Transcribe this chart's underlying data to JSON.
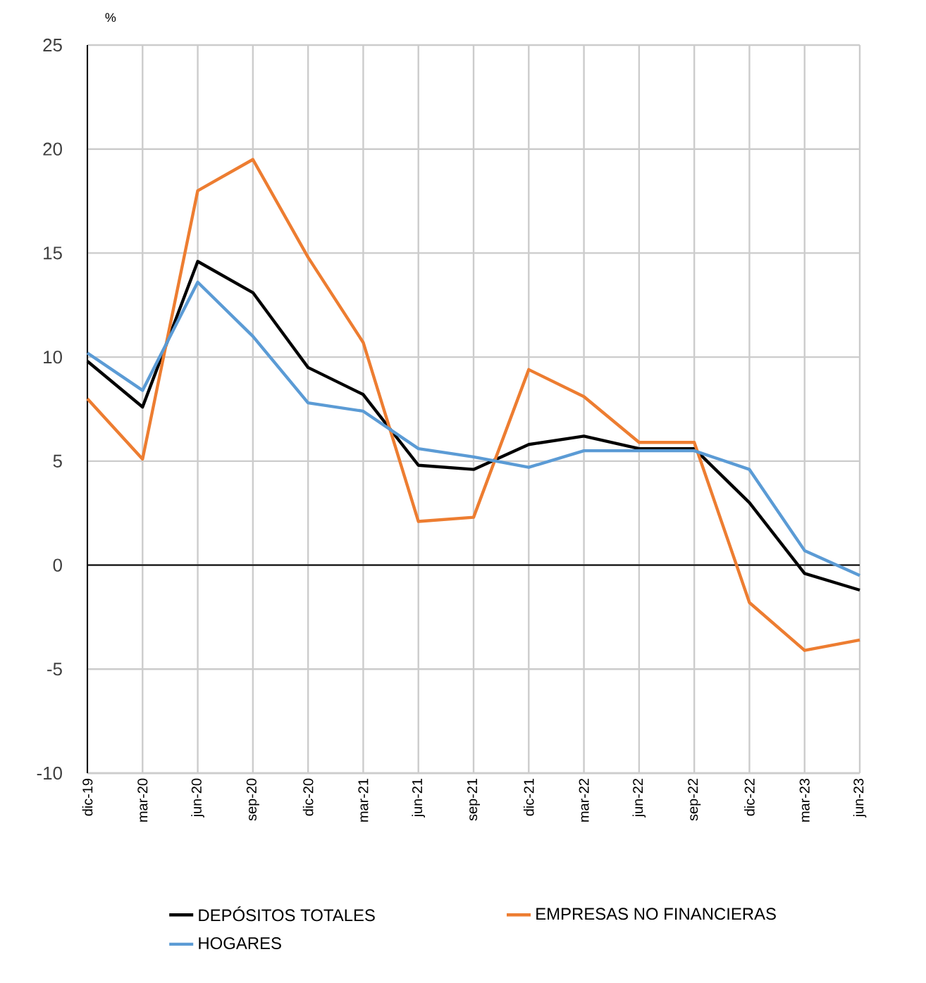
{
  "chart_data": {
    "type": "line",
    "ylabel": "%",
    "categories": [
      "dic-19",
      "mar-20",
      "jun-20",
      "sep-20",
      "dic-20",
      "mar-21",
      "jun-21",
      "sep-21",
      "dic-21",
      "mar-22",
      "jun-22",
      "sep-22",
      "dic-22",
      "mar-23",
      "jun-23"
    ],
    "series": [
      {
        "name": "DEPÓSITOS TOTALES",
        "color": "#000000",
        "values": [
          9.8,
          7.6,
          14.6,
          13.1,
          9.5,
          8.2,
          4.8,
          4.6,
          5.8,
          6.2,
          5.6,
          5.6,
          3.0,
          -0.4,
          -1.2
        ]
      },
      {
        "name": "EMPRESAS NO FINANCIERAS",
        "color": "#ed7d31",
        "values": [
          8.0,
          5.1,
          18.0,
          19.5,
          14.8,
          10.7,
          2.1,
          2.3,
          9.4,
          8.1,
          5.9,
          5.9,
          -1.8,
          -4.1,
          -3.6
        ]
      },
      {
        "name": "HOGARES",
        "color": "#5b9bd5",
        "values": [
          10.2,
          8.4,
          13.6,
          11.0,
          7.8,
          7.4,
          5.6,
          5.2,
          4.7,
          5.5,
          5.5,
          5.5,
          4.6,
          0.7,
          -0.5
        ]
      }
    ],
    "ylim": [
      -10,
      25
    ],
    "yticks": [
      -10,
      -5,
      0,
      5,
      10,
      15,
      20,
      25
    ],
    "ref_lines": [
      {
        "axis": "y",
        "value": 0,
        "color": "#000000"
      }
    ],
    "grid": true,
    "legend": "bottom"
  }
}
